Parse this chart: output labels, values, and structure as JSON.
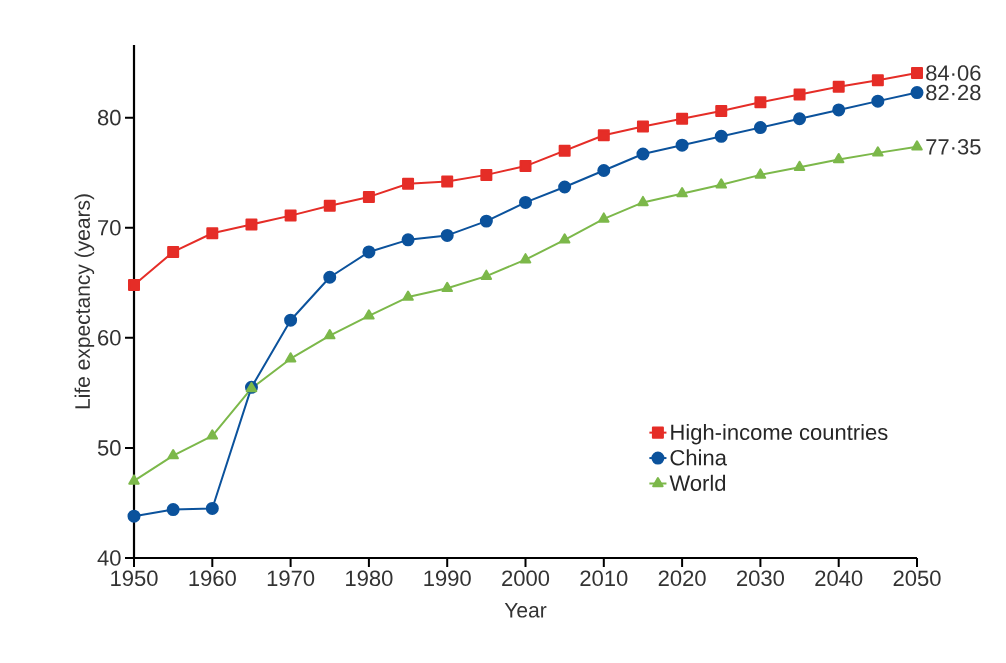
{
  "chart_data": {
    "type": "line",
    "xlabel": "Year",
    "ylabel": "Life expectancy (years)",
    "x": [
      1950,
      1955,
      1960,
      1965,
      1970,
      1975,
      1980,
      1985,
      1990,
      1995,
      2000,
      2005,
      2010,
      2015,
      2020,
      2025,
      2030,
      2035,
      2040,
      2045,
      2050
    ],
    "series": [
      {
        "name": "High-income countries",
        "color": "#e52d27",
        "marker": "square",
        "values": [
          64.8,
          67.8,
          69.5,
          70.3,
          71.1,
          72.0,
          72.8,
          74.0,
          74.2,
          74.8,
          75.6,
          77.0,
          78.4,
          79.2,
          79.9,
          80.6,
          81.4,
          82.1,
          82.8,
          83.4,
          84.06
        ],
        "value_labels": [
          null,
          null,
          null,
          null,
          null,
          null,
          null,
          null,
          null,
          null,
          null,
          null,
          null,
          null,
          null,
          null,
          null,
          null,
          null,
          null,
          "84·06"
        ]
      },
      {
        "name": "China",
        "color": "#0b529c",
        "marker": "circle",
        "values": [
          43.8,
          44.4,
          44.5,
          55.5,
          61.6,
          65.5,
          67.8,
          68.9,
          69.3,
          70.6,
          72.3,
          73.7,
          75.2,
          76.7,
          77.5,
          78.3,
          79.1,
          79.9,
          80.7,
          81.5,
          82.28
        ],
        "value_labels": [
          null,
          null,
          null,
          null,
          null,
          null,
          null,
          null,
          null,
          null,
          null,
          null,
          null,
          null,
          null,
          null,
          null,
          null,
          null,
          null,
          "82·28"
        ]
      },
      {
        "name": "World",
        "color": "#7cb84a",
        "marker": "triangle",
        "values": [
          47.0,
          49.3,
          51.1,
          55.4,
          58.1,
          60.2,
          62.0,
          63.7,
          64.5,
          65.6,
          67.1,
          68.9,
          70.8,
          72.3,
          73.1,
          73.9,
          74.8,
          75.5,
          76.2,
          76.8,
          77.35
        ],
        "value_labels": [
          null,
          null,
          null,
          null,
          null,
          null,
          null,
          null,
          null,
          null,
          null,
          null,
          null,
          null,
          null,
          null,
          null,
          null,
          null,
          null,
          "77·35"
        ]
      }
    ],
    "xlim": [
      1950,
      2050
    ],
    "xticks": [
      1950,
      1960,
      1970,
      1980,
      1990,
      2000,
      2010,
      2020,
      2030,
      2040,
      2050
    ],
    "ylim": [
      40,
      86.6
    ],
    "yticks": [
      40,
      50,
      60,
      70,
      80
    ],
    "legend": "bottom right",
    "grid": false,
    "line_style": "solid"
  }
}
